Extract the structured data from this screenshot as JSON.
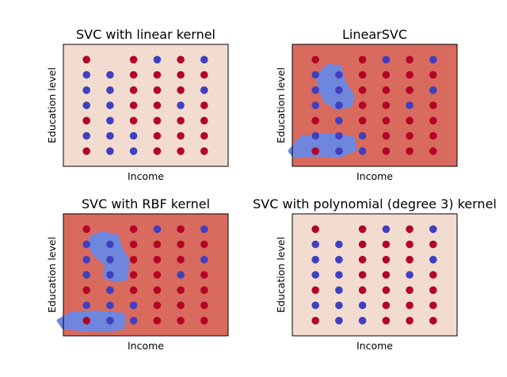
{
  "colors": {
    "bg_light": "#f2dcd0",
    "bg_dark": "#d86a5e",
    "region_blue": "#6f86dd",
    "point_red": "#b40426",
    "point_blue": "#4040bf"
  },
  "chart_data": [
    {
      "type": "scatter",
      "title": "SVC with linear kernel",
      "xlabel": "Income",
      "ylabel": "Education level",
      "xticks": "hidden",
      "yticks": "hidden",
      "background": "light",
      "regions": [],
      "points": [
        {
          "x": 1,
          "y": 7,
          "class": "red"
        },
        {
          "x": 3,
          "y": 7,
          "class": "red"
        },
        {
          "x": 4,
          "y": 7,
          "class": "blue"
        },
        {
          "x": 5,
          "y": 7,
          "class": "red"
        },
        {
          "x": 6,
          "y": 7,
          "class": "blue"
        },
        {
          "x": 1,
          "y": 6,
          "class": "blue"
        },
        {
          "x": 2,
          "y": 6,
          "class": "blue"
        },
        {
          "x": 3,
          "y": 6,
          "class": "red"
        },
        {
          "x": 4,
          "y": 6,
          "class": "red"
        },
        {
          "x": 5,
          "y": 6,
          "class": "red"
        },
        {
          "x": 6,
          "y": 6,
          "class": "red"
        },
        {
          "x": 1,
          "y": 5,
          "class": "blue"
        },
        {
          "x": 2,
          "y": 5,
          "class": "blue"
        },
        {
          "x": 3,
          "y": 5,
          "class": "red"
        },
        {
          "x": 4,
          "y": 5,
          "class": "red"
        },
        {
          "x": 5,
          "y": 5,
          "class": "red"
        },
        {
          "x": 6,
          "y": 5,
          "class": "blue"
        },
        {
          "x": 1,
          "y": 4,
          "class": "blue"
        },
        {
          "x": 2,
          "y": 4,
          "class": "blue"
        },
        {
          "x": 3,
          "y": 4,
          "class": "red"
        },
        {
          "x": 4,
          "y": 4,
          "class": "red"
        },
        {
          "x": 5,
          "y": 4,
          "class": "blue"
        },
        {
          "x": 6,
          "y": 4,
          "class": "red"
        },
        {
          "x": 1,
          "y": 3,
          "class": "red"
        },
        {
          "x": 2,
          "y": 3,
          "class": "blue"
        },
        {
          "x": 3,
          "y": 3,
          "class": "red"
        },
        {
          "x": 4,
          "y": 3,
          "class": "red"
        },
        {
          "x": 5,
          "y": 3,
          "class": "red"
        },
        {
          "x": 6,
          "y": 3,
          "class": "red"
        },
        {
          "x": 1,
          "y": 2,
          "class": "blue"
        },
        {
          "x": 2,
          "y": 2,
          "class": "blue"
        },
        {
          "x": 3,
          "y": 2,
          "class": "blue"
        },
        {
          "x": 4,
          "y": 2,
          "class": "red"
        },
        {
          "x": 5,
          "y": 2,
          "class": "red"
        },
        {
          "x": 6,
          "y": 2,
          "class": "red"
        },
        {
          "x": 1,
          "y": 1,
          "class": "red"
        },
        {
          "x": 2,
          "y": 1,
          "class": "blue"
        },
        {
          "x": 3,
          "y": 1,
          "class": "blue"
        },
        {
          "x": 4,
          "y": 1,
          "class": "red"
        },
        {
          "x": 5,
          "y": 1,
          "class": "red"
        },
        {
          "x": 6,
          "y": 1,
          "class": "red"
        }
      ]
    },
    {
      "type": "scatter",
      "title": "LinearSVC",
      "xlabel": "Income",
      "ylabel": "Education level",
      "xticks": "hidden",
      "yticks": "hidden",
      "background": "dark",
      "regions": [
        [
          [
            1.1,
            5.9
          ],
          [
            1.5,
            6.6
          ],
          [
            2.05,
            6.55
          ],
          [
            2.2,
            5.6
          ],
          [
            2.6,
            4.6
          ],
          [
            2.5,
            4.0
          ],
          [
            1.9,
            3.8
          ],
          [
            1.4,
            4.3
          ],
          [
            1.2,
            5.0
          ]
        ],
        [
          [
            -0.1,
            1.0
          ],
          [
            0.4,
            1.9
          ],
          [
            1.6,
            2.1
          ],
          [
            2.6,
            1.85
          ],
          [
            2.7,
            1.1
          ],
          [
            2.0,
            0.65
          ],
          [
            1.0,
            0.75
          ],
          [
            0.1,
            0.65
          ]
        ]
      ],
      "points": [
        {
          "x": 1,
          "y": 7,
          "class": "red"
        },
        {
          "x": 3,
          "y": 7,
          "class": "red"
        },
        {
          "x": 4,
          "y": 7,
          "class": "blue"
        },
        {
          "x": 5,
          "y": 7,
          "class": "red"
        },
        {
          "x": 6,
          "y": 7,
          "class": "blue"
        },
        {
          "x": 1,
          "y": 6,
          "class": "blue"
        },
        {
          "x": 2,
          "y": 6,
          "class": "blue"
        },
        {
          "x": 3,
          "y": 6,
          "class": "red"
        },
        {
          "x": 4,
          "y": 6,
          "class": "red"
        },
        {
          "x": 5,
          "y": 6,
          "class": "red"
        },
        {
          "x": 6,
          "y": 6,
          "class": "red"
        },
        {
          "x": 1,
          "y": 5,
          "class": "blue"
        },
        {
          "x": 2,
          "y": 5,
          "class": "blue"
        },
        {
          "x": 3,
          "y": 5,
          "class": "red"
        },
        {
          "x": 4,
          "y": 5,
          "class": "red"
        },
        {
          "x": 5,
          "y": 5,
          "class": "red"
        },
        {
          "x": 6,
          "y": 5,
          "class": "blue"
        },
        {
          "x": 1,
          "y": 4,
          "class": "blue"
        },
        {
          "x": 2,
          "y": 4,
          "class": "blue"
        },
        {
          "x": 3,
          "y": 4,
          "class": "red"
        },
        {
          "x": 4,
          "y": 4,
          "class": "red"
        },
        {
          "x": 5,
          "y": 4,
          "class": "blue"
        },
        {
          "x": 6,
          "y": 4,
          "class": "red"
        },
        {
          "x": 1,
          "y": 3,
          "class": "red"
        },
        {
          "x": 2,
          "y": 3,
          "class": "blue"
        },
        {
          "x": 3,
          "y": 3,
          "class": "red"
        },
        {
          "x": 4,
          "y": 3,
          "class": "red"
        },
        {
          "x": 5,
          "y": 3,
          "class": "red"
        },
        {
          "x": 6,
          "y": 3,
          "class": "red"
        },
        {
          "x": 1,
          "y": 2,
          "class": "blue"
        },
        {
          "x": 2,
          "y": 2,
          "class": "blue"
        },
        {
          "x": 3,
          "y": 2,
          "class": "blue"
        },
        {
          "x": 4,
          "y": 2,
          "class": "red"
        },
        {
          "x": 5,
          "y": 2,
          "class": "red"
        },
        {
          "x": 6,
          "y": 2,
          "class": "red"
        },
        {
          "x": 1,
          "y": 1,
          "class": "red"
        },
        {
          "x": 2,
          "y": 1,
          "class": "blue"
        },
        {
          "x": 3,
          "y": 1,
          "class": "blue"
        },
        {
          "x": 4,
          "y": 1,
          "class": "red"
        },
        {
          "x": 5,
          "y": 1,
          "class": "red"
        },
        {
          "x": 6,
          "y": 1,
          "class": "red"
        }
      ]
    },
    {
      "type": "scatter",
      "title": "SVC with RBF kernel",
      "xlabel": "Income",
      "ylabel": "Education level",
      "xticks": "hidden",
      "yticks": "hidden",
      "background": "dark",
      "regions": [
        [
          [
            1.2,
            6.5
          ],
          [
            1.7,
            6.75
          ],
          [
            2.3,
            6.55
          ],
          [
            2.45,
            5.75
          ],
          [
            2.75,
            5.0
          ],
          [
            2.7,
            3.75
          ],
          [
            2.2,
            3.6
          ],
          [
            1.75,
            3.9
          ],
          [
            1.85,
            4.7
          ],
          [
            1.35,
            5.3
          ],
          [
            1.1,
            6.0
          ]
        ],
        [
          [
            -0.2,
            1.0
          ],
          [
            0.4,
            1.5
          ],
          [
            1.5,
            1.55
          ],
          [
            2.6,
            1.4
          ],
          [
            2.55,
            0.5
          ],
          [
            1.8,
            0.35
          ],
          [
            0.8,
            0.4
          ],
          [
            0.0,
            0.55
          ]
        ]
      ],
      "points": [
        {
          "x": 1,
          "y": 7,
          "class": "red"
        },
        {
          "x": 3,
          "y": 7,
          "class": "red"
        },
        {
          "x": 4,
          "y": 7,
          "class": "blue"
        },
        {
          "x": 5,
          "y": 7,
          "class": "red"
        },
        {
          "x": 6,
          "y": 7,
          "class": "blue"
        },
        {
          "x": 1,
          "y": 6,
          "class": "blue"
        },
        {
          "x": 2,
          "y": 6,
          "class": "blue"
        },
        {
          "x": 3,
          "y": 6,
          "class": "red"
        },
        {
          "x": 4,
          "y": 6,
          "class": "red"
        },
        {
          "x": 5,
          "y": 6,
          "class": "red"
        },
        {
          "x": 6,
          "y": 6,
          "class": "red"
        },
        {
          "x": 1,
          "y": 5,
          "class": "blue"
        },
        {
          "x": 2,
          "y": 5,
          "class": "blue"
        },
        {
          "x": 3,
          "y": 5,
          "class": "red"
        },
        {
          "x": 4,
          "y": 5,
          "class": "red"
        },
        {
          "x": 5,
          "y": 5,
          "class": "red"
        },
        {
          "x": 6,
          "y": 5,
          "class": "blue"
        },
        {
          "x": 1,
          "y": 4,
          "class": "blue"
        },
        {
          "x": 2,
          "y": 4,
          "class": "blue"
        },
        {
          "x": 3,
          "y": 4,
          "class": "red"
        },
        {
          "x": 4,
          "y": 4,
          "class": "red"
        },
        {
          "x": 5,
          "y": 4,
          "class": "blue"
        },
        {
          "x": 6,
          "y": 4,
          "class": "red"
        },
        {
          "x": 1,
          "y": 3,
          "class": "red"
        },
        {
          "x": 2,
          "y": 3,
          "class": "blue"
        },
        {
          "x": 3,
          "y": 3,
          "class": "red"
        },
        {
          "x": 4,
          "y": 3,
          "class": "red"
        },
        {
          "x": 5,
          "y": 3,
          "class": "red"
        },
        {
          "x": 6,
          "y": 3,
          "class": "red"
        },
        {
          "x": 1,
          "y": 2,
          "class": "blue"
        },
        {
          "x": 2,
          "y": 2,
          "class": "blue"
        },
        {
          "x": 3,
          "y": 2,
          "class": "blue"
        },
        {
          "x": 4,
          "y": 2,
          "class": "red"
        },
        {
          "x": 5,
          "y": 2,
          "class": "red"
        },
        {
          "x": 6,
          "y": 2,
          "class": "red"
        },
        {
          "x": 1,
          "y": 1,
          "class": "red"
        },
        {
          "x": 2,
          "y": 1,
          "class": "blue"
        },
        {
          "x": 3,
          "y": 1,
          "class": "blue"
        },
        {
          "x": 4,
          "y": 1,
          "class": "red"
        },
        {
          "x": 5,
          "y": 1,
          "class": "red"
        },
        {
          "x": 6,
          "y": 1,
          "class": "red"
        }
      ]
    },
    {
      "type": "scatter",
      "title": "SVC with polynomial (degree 3) kernel",
      "xlabel": "Income",
      "ylabel": "Education level",
      "xticks": "hidden",
      "yticks": "hidden",
      "background": "light",
      "regions": [],
      "points": [
        {
          "x": 1,
          "y": 7,
          "class": "red"
        },
        {
          "x": 3,
          "y": 7,
          "class": "red"
        },
        {
          "x": 4,
          "y": 7,
          "class": "blue"
        },
        {
          "x": 5,
          "y": 7,
          "class": "red"
        },
        {
          "x": 6,
          "y": 7,
          "class": "blue"
        },
        {
          "x": 1,
          "y": 6,
          "class": "blue"
        },
        {
          "x": 2,
          "y": 6,
          "class": "blue"
        },
        {
          "x": 3,
          "y": 6,
          "class": "red"
        },
        {
          "x": 4,
          "y": 6,
          "class": "red"
        },
        {
          "x": 5,
          "y": 6,
          "class": "red"
        },
        {
          "x": 6,
          "y": 6,
          "class": "red"
        },
        {
          "x": 1,
          "y": 5,
          "class": "blue"
        },
        {
          "x": 2,
          "y": 5,
          "class": "blue"
        },
        {
          "x": 3,
          "y": 5,
          "class": "red"
        },
        {
          "x": 4,
          "y": 5,
          "class": "red"
        },
        {
          "x": 5,
          "y": 5,
          "class": "red"
        },
        {
          "x": 6,
          "y": 5,
          "class": "blue"
        },
        {
          "x": 1,
          "y": 4,
          "class": "blue"
        },
        {
          "x": 2,
          "y": 4,
          "class": "blue"
        },
        {
          "x": 3,
          "y": 4,
          "class": "red"
        },
        {
          "x": 4,
          "y": 4,
          "class": "red"
        },
        {
          "x": 5,
          "y": 4,
          "class": "blue"
        },
        {
          "x": 6,
          "y": 4,
          "class": "red"
        },
        {
          "x": 1,
          "y": 3,
          "class": "red"
        },
        {
          "x": 2,
          "y": 3,
          "class": "blue"
        },
        {
          "x": 3,
          "y": 3,
          "class": "red"
        },
        {
          "x": 4,
          "y": 3,
          "class": "red"
        },
        {
          "x": 5,
          "y": 3,
          "class": "red"
        },
        {
          "x": 6,
          "y": 3,
          "class": "red"
        },
        {
          "x": 1,
          "y": 2,
          "class": "blue"
        },
        {
          "x": 2,
          "y": 2,
          "class": "blue"
        },
        {
          "x": 3,
          "y": 2,
          "class": "blue"
        },
        {
          "x": 4,
          "y": 2,
          "class": "red"
        },
        {
          "x": 5,
          "y": 2,
          "class": "red"
        },
        {
          "x": 6,
          "y": 2,
          "class": "red"
        },
        {
          "x": 1,
          "y": 1,
          "class": "red"
        },
        {
          "x": 2,
          "y": 1,
          "class": "blue"
        },
        {
          "x": 3,
          "y": 1,
          "class": "blue"
        },
        {
          "x": 4,
          "y": 1,
          "class": "red"
        },
        {
          "x": 5,
          "y": 1,
          "class": "red"
        },
        {
          "x": 6,
          "y": 1,
          "class": "red"
        }
      ]
    }
  ]
}
